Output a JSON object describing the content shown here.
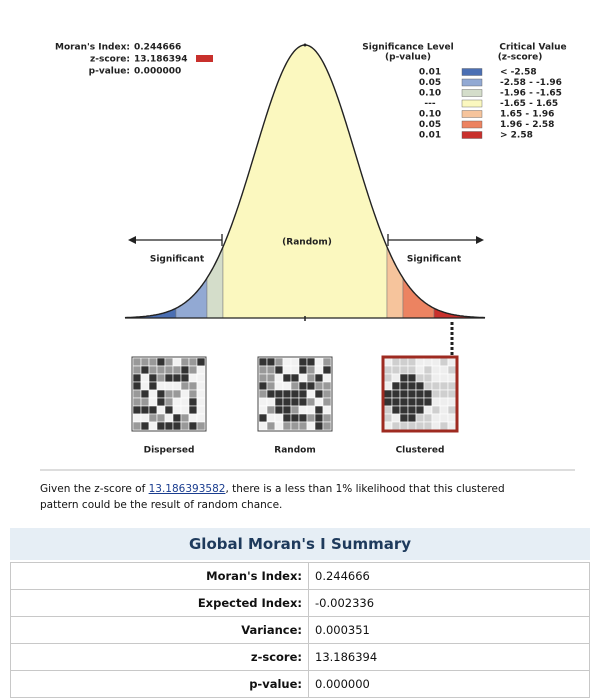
{
  "report": {
    "stats": [
      {
        "label": "Moran's Index:",
        "value": "0.244666"
      },
      {
        "label": "z-score:",
        "value": "13.186394"
      },
      {
        "label": "p-value:",
        "value": "0.000000"
      }
    ],
    "legend": {
      "p_header": "Significance Level",
      "p_sub": "(p-value)",
      "z_header": "Critical Value",
      "z_sub": "(z-score)",
      "rows": [
        {
          "p": "0.01",
          "z": "< -2.58",
          "color": "#4b6fb3"
        },
        {
          "p": "0.05",
          "z": "-2.58 - -1.96",
          "color": "#92a9d3"
        },
        {
          "p": "0.10",
          "z": "-1.96 - -1.65",
          "color": "#d4ddca"
        },
        {
          "p": "---",
          "z": "-1.65 - 1.65",
          "color": "#fbf8bf"
        },
        {
          "p": "0.10",
          "z": "1.65 - 1.96",
          "color": "#f6c49c"
        },
        {
          "p": "0.05",
          "z": "1.96 - 2.58",
          "color": "#ec8361"
        },
        {
          "p": "0.01",
          "z": "> 2.58",
          "color": "#c8302c"
        }
      ]
    },
    "curve": {
      "left": "Significant",
      "center": "(Random)",
      "right": "Significant"
    },
    "maps": [
      "Dispersed",
      "Random",
      "Clustered"
    ],
    "sentence": {
      "before": "Given the z-score of ",
      "link": "13.186393582",
      "after": ", there is a less than 1% likelihood that this clustered pattern could be the result of random chance."
    },
    "summary": {
      "title": "Global Moran's I Summary",
      "rows": [
        [
          "Moran's Index:",
          "0.244666"
        ],
        [
          "Expected Index:",
          "-0.002336"
        ],
        [
          "Variance:",
          "0.000351"
        ],
        [
          "z-score:",
          "13.186394"
        ],
        [
          "p-value:",
          "0.000000"
        ]
      ]
    }
  }
}
